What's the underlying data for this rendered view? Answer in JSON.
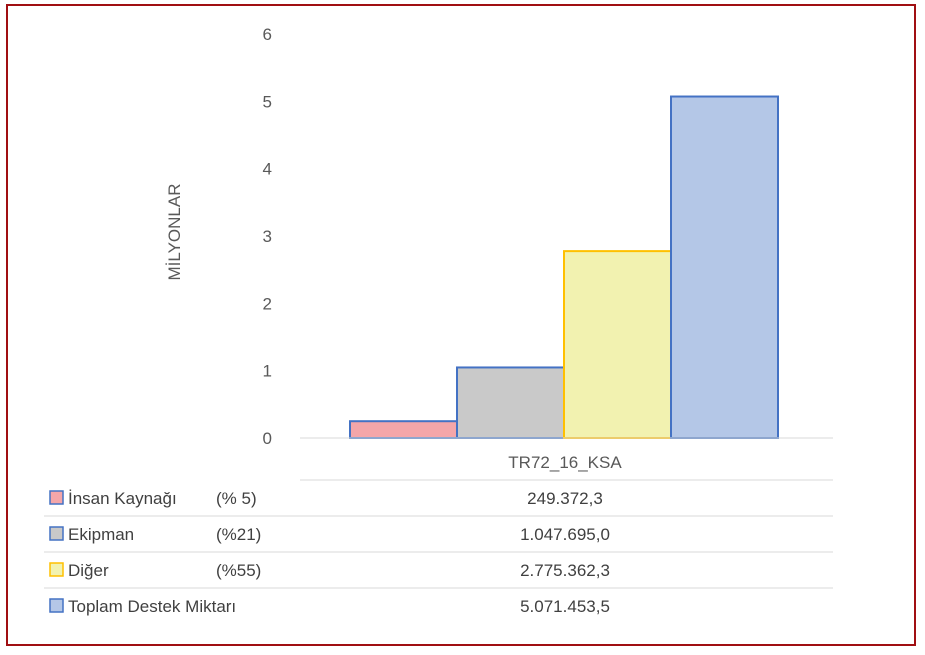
{
  "chart_data": {
    "type": "bar",
    "ylabel": "MİLYONLAR",
    "ylim": [
      0,
      6
    ],
    "yticks": [
      "0",
      "1",
      "2",
      "3",
      "4",
      "5",
      "6"
    ],
    "categories": [
      "TR72_16_KSA"
    ],
    "series": [
      {
        "name": "İnsan Kaynağı",
        "share": "(% 5)",
        "value": 249372.3,
        "value_label": "249.372,3",
        "color": "#f4a6a9",
        "stroke": "#4472c4"
      },
      {
        "name": "Ekipman",
        "share": "(%21)",
        "value": 1047695.0,
        "value_label": "1.047.695,0",
        "color": "#c9c9c9",
        "stroke": "#4472c4"
      },
      {
        "name": "Diğer",
        "share": "(%55)",
        "value": 2775362.3,
        "value_label": "2.775.362,3",
        "color": "#f2f2b0",
        "stroke": "#ffc000"
      },
      {
        "name": "Toplam Destek Miktarı",
        "share": "",
        "value": 5071453.5,
        "value_label": "5.071.453,5",
        "color": "#b4c7e7",
        "stroke": "#4472c4"
      }
    ],
    "unit_divisor": 1000000,
    "grid": false,
    "legend": "data-table-below"
  }
}
